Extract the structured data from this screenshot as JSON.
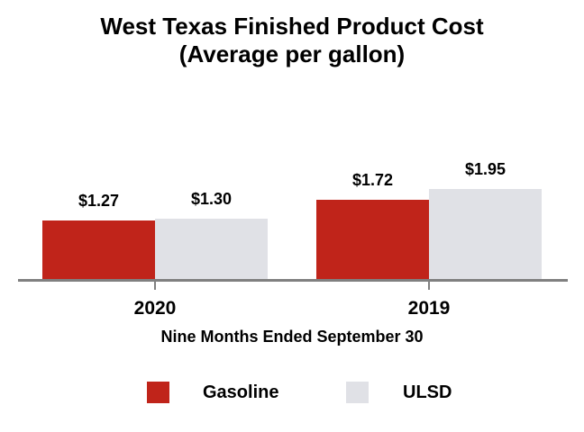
{
  "title": {
    "line1": "West Texas Finished Product Cost",
    "line2": "(Average per gallon)"
  },
  "chart_data": {
    "type": "bar",
    "title": "West Texas Finished Product Cost",
    "subtitle": "(Average per gallon)",
    "categories": [
      "2020",
      "2019"
    ],
    "series": [
      {
        "name": "Gasoline",
        "color": "#c0241a",
        "values": [
          1.27,
          1.72
        ],
        "labels": [
          "$1.27",
          "$1.72"
        ]
      },
      {
        "name": "ULSD",
        "color": "#e0e1e6",
        "values": [
          1.3,
          1.95
        ],
        "labels": [
          "$1.30",
          "$1.95"
        ]
      }
    ],
    "xlabel": "Nine Months Ended September 30",
    "ylabel": "",
    "ylim": [
      0,
      2.2
    ],
    "grid": false,
    "legend_position": "bottom",
    "bar_gap_within_group": 0
  },
  "legend": {
    "items": [
      {
        "label": "Gasoline",
        "color": "#c0241a"
      },
      {
        "label": "ULSD",
        "color": "#e0e1e6"
      }
    ]
  },
  "colors": {
    "gasoline": "#c0241a",
    "ulsd": "#e0e1e6",
    "axis_line": "#808080",
    "text": "#000000",
    "background": "#ffffff"
  }
}
